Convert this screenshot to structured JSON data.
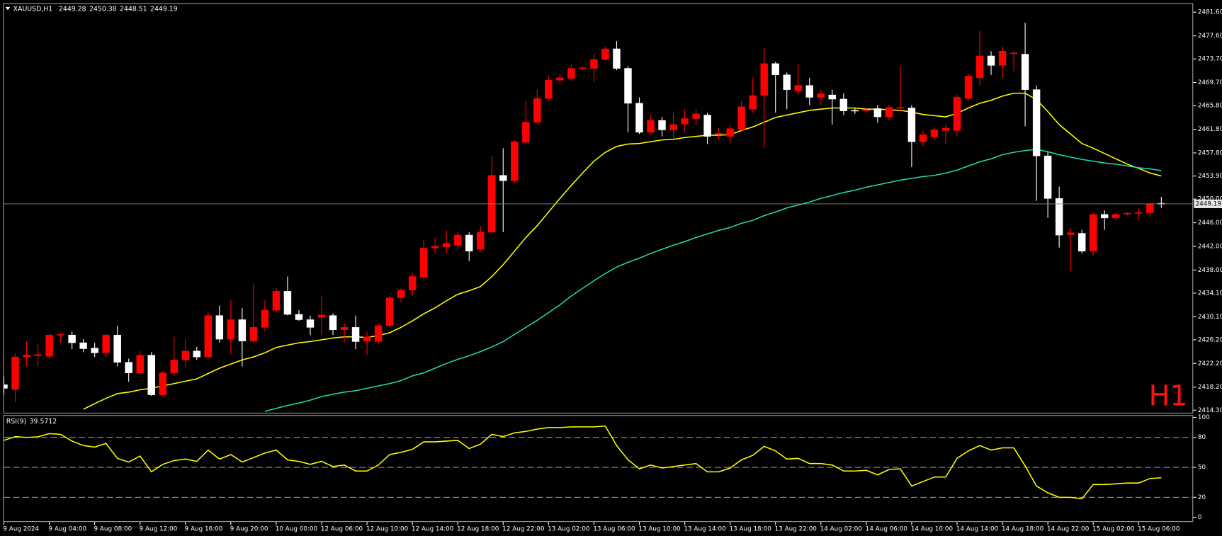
{
  "chart_data": {
    "type": "candlestick",
    "title": "XAUUSD,H1",
    "watermark": "H1",
    "watermark_color": "#ff1010",
    "up_color": "#ff0000",
    "down_color": "#ffffff",
    "categories": [
      "9 Aug 2024",
      null,
      null,
      null,
      "9 Aug 04:00",
      null,
      null,
      null,
      "9 Aug 08:00",
      null,
      null,
      null,
      "9 Aug 12:00",
      null,
      null,
      null,
      "9 Aug 16:00",
      null,
      null,
      null,
      "9 Aug 20:00",
      null,
      null,
      null,
      "10 Aug 00:00",
      null,
      null,
      null,
      "12 Aug 06:00",
      null,
      null,
      null,
      "12 Aug 10:00",
      null,
      null,
      null,
      "12 Aug 14:00",
      null,
      null,
      null,
      "12 Aug 18:00",
      null,
      null,
      null,
      "12 Aug 22:00",
      null,
      null,
      null,
      "13 Aug 02:00",
      null,
      null,
      null,
      "13 Aug 06:00",
      null,
      null,
      null,
      "13 Aug 10:00",
      null,
      null,
      null,
      "13 Aug 14:00",
      null,
      null,
      null,
      "13 Aug 18:00",
      null,
      null,
      null,
      "13 Aug 22:00",
      null,
      null,
      null,
      "14 Aug 02:00",
      null,
      null,
      null,
      "14 Aug 06:00",
      null,
      null,
      null,
      "14 Aug 10:00",
      null,
      null,
      null,
      "14 Aug 14:00",
      null,
      null,
      null,
      "14 Aug 18:00",
      null,
      null,
      null,
      "14 Aug 22:00",
      null,
      null,
      null,
      "15 Aug 02:00",
      null,
      null,
      null,
      "15 Aug 06:00",
      null,
      null
    ],
    "open": [
      2418.6,
      2417.8,
      2423.3,
      2423.5,
      2423.4,
      2427.0,
      2427.0,
      2425.7,
      2424.8,
      2424.0,
      2427.0,
      2422.4,
      2420.6,
      2423.6,
      2416.9,
      2420.6,
      2422.8,
      2424.3,
      2423.3,
      2430.3,
      2426.3,
      2429.6,
      2426.0,
      2428.3,
      2431.2,
      2434.4,
      2430.5,
      2429.6,
      2430.0,
      2430.3,
      2427.9,
      2428.3,
      2426.0,
      2425.9,
      2428.6,
      2433.3,
      2434.6,
      2436.8,
      2441.7,
      2441.9,
      2442.2,
      2443.9,
      2441.5,
      2444.4,
      2454.0,
      2453.1,
      2459.6,
      2463.0,
      2467.0,
      2470.1,
      2470.4,
      2472.1,
      2472.1,
      2473.6,
      2475.4,
      2472.1,
      2466.2,
      2461.3,
      2463.3,
      2461.7,
      2462.7,
      2463.6,
      2464.2,
      2461.0,
      2460.6,
      2461.7,
      2465.2,
      2467.5,
      2472.9,
      2471.0,
      2468.3,
      2469.2,
      2467.2,
      2467.6,
      2466.9,
      2465.0,
      2464.9,
      2465.3,
      2463.9,
      2465.4,
      2465.4,
      2459.7,
      2460.5,
      2461.6,
      2461.6,
      2467.0,
      2470.5,
      2474.2,
      2472.6,
      2474.6,
      2474.5,
      2468.5,
      2457.3,
      2450.1,
      2444.0,
      2444.2,
      2441.2,
      2447.4,
      2446.8,
      2447.5,
      2447.6,
      2447.7,
      2449.28
    ],
    "high": [
      2420.0,
      2423.8,
      2426.0,
      2425.5,
      2427.3,
      2427.4,
      2427.6,
      2426.3,
      2425.7,
      2427.3,
      2428.6,
      2423.0,
      2424.3,
      2424.1,
      2420.9,
      2426.7,
      2426.3,
      2425.0,
      2430.9,
      2432.0,
      2432.9,
      2431.6,
      2435.6,
      2432.9,
      2434.9,
      2436.9,
      2431.2,
      2430.3,
      2433.6,
      2430.7,
      2429.0,
      2430.3,
      2427.6,
      2429.0,
      2433.6,
      2434.9,
      2437.5,
      2443.1,
      2443.5,
      2444.7,
      2444.4,
      2444.4,
      2445.4,
      2457.3,
      2458.6,
      2460.0,
      2466.6,
      2468.5,
      2470.8,
      2471.2,
      2472.8,
      2472.4,
      2474.5,
      2475.8,
      2476.7,
      2472.5,
      2467.2,
      2464.2,
      2463.9,
      2464.6,
      2465.2,
      2465.2,
      2464.6,
      2462.0,
      2462.6,
      2466.6,
      2470.5,
      2475.5,
      2473.2,
      2471.4,
      2472.9,
      2470.5,
      2468.5,
      2468.5,
      2467.9,
      2465.4,
      2465.4,
      2465.9,
      2465.9,
      2472.5,
      2465.9,
      2461.6,
      2462.2,
      2462.6,
      2467.6,
      2471.2,
      2478.4,
      2475.0,
      2475.8,
      2475.0,
      2479.8,
      2469.2,
      2458.0,
      2452.1,
      2445.1,
      2444.8,
      2447.8,
      2448.1,
      2447.8,
      2447.8,
      2448.4,
      2449.4,
      2450.38
    ],
    "low": [
      2417.0,
      2415.7,
      2421.7,
      2421.7,
      2423.0,
      2425.7,
      2424.6,
      2424.1,
      2423.3,
      2423.3,
      2421.7,
      2419.1,
      2420.4,
      2416.7,
      2416.7,
      2420.1,
      2421.7,
      2422.8,
      2423.0,
      2425.7,
      2423.7,
      2421.7,
      2425.7,
      2427.6,
      2430.9,
      2430.3,
      2429.4,
      2427.0,
      2427.0,
      2427.0,
      2425.7,
      2424.6,
      2423.7,
      2425.4,
      2428.3,
      2432.5,
      2433.6,
      2436.4,
      2440.8,
      2440.8,
      2441.5,
      2439.5,
      2441.2,
      2444.1,
      2444.4,
      2452.7,
      2459.3,
      2462.6,
      2466.6,
      2469.5,
      2470.0,
      2471.8,
      2469.8,
      2473.4,
      2471.8,
      2461.3,
      2461.0,
      2461.0,
      2460.6,
      2460.2,
      2461.3,
      2462.6,
      2459.3,
      2460.0,
      2459.3,
      2461.3,
      2464.6,
      2458.6,
      2464.6,
      2465.2,
      2467.6,
      2465.9,
      2465.9,
      2462.6,
      2464.2,
      2464.4,
      2464.5,
      2462.9,
      2463.3,
      2464.6,
      2455.4,
      2458.9,
      2460.0,
      2459.3,
      2460.6,
      2466.6,
      2469.2,
      2471.0,
      2470.5,
      2471.6,
      2462.3,
      2449.7,
      2446.8,
      2441.8,
      2437.8,
      2440.8,
      2440.4,
      2444.8,
      2446.4,
      2447.2,
      2446.6,
      2447.0,
      2448.51
    ],
    "close": [
      2418.0,
      2423.3,
      2423.6,
      2423.7,
      2427.0,
      2427.1,
      2425.7,
      2424.7,
      2424.0,
      2427.0,
      2422.4,
      2420.6,
      2423.6,
      2416.9,
      2420.6,
      2422.8,
      2424.3,
      2423.3,
      2430.3,
      2426.3,
      2429.6,
      2426.0,
      2428.3,
      2431.2,
      2434.4,
      2430.5,
      2429.6,
      2428.3,
      2430.4,
      2427.9,
      2428.3,
      2425.9,
      2426.7,
      2428.6,
      2433.3,
      2434.6,
      2436.9,
      2441.7,
      2442.0,
      2442.5,
      2443.9,
      2441.2,
      2444.4,
      2454.0,
      2453.1,
      2459.7,
      2463.0,
      2467.0,
      2470.1,
      2470.5,
      2472.1,
      2472.2,
      2473.6,
      2475.4,
      2472.1,
      2466.2,
      2461.3,
      2463.3,
      2461.7,
      2462.6,
      2463.6,
      2464.4,
      2460.6,
      2461.1,
      2461.9,
      2465.6,
      2467.5,
      2472.9,
      2471.0,
      2468.5,
      2469.2,
      2467.2,
      2467.8,
      2466.9,
      2464.9,
      2464.9,
      2465.0,
      2463.9,
      2465.5,
      2465.5,
      2459.7,
      2460.9,
      2461.7,
      2462.0,
      2467.2,
      2470.8,
      2474.2,
      2472.6,
      2475.0,
      2474.7,
      2468.5,
      2457.3,
      2450.1,
      2443.9,
      2444.3,
      2441.2,
      2447.4,
      2446.8,
      2447.4,
      2447.6,
      2447.7,
      2449.2,
      2449.19
    ],
    "moving_averages": [
      {
        "color": "#ffff00",
        "values": [
          null,
          null,
          null,
          null,
          null,
          null,
          null,
          2414.45,
          2415.4,
          2416.3,
          2417.1,
          2417.35,
          2417.75,
          2418.0,
          2418.4,
          2418.8,
          2419.2,
          2419.6,
          2420.5,
          2421.4,
          2422.1,
          2422.8,
          2423.3,
          2424.0,
          2424.9,
          2425.3,
          2425.7,
          2425.9,
          2426.2,
          2426.5,
          2426.7,
          2426.7,
          2426.6,
          2426.9,
          2427.4,
          2428.3,
          2429.4,
          2430.6,
          2431.6,
          2432.8,
          2433.9,
          2434.5,
          2435.2,
          2436.9,
          2438.9,
          2441.2,
          2443.5,
          2445.5,
          2447.8,
          2450.1,
          2452.3,
          2454.4,
          2456.4,
          2457.9,
          2458.9,
          2459.3,
          2459.4,
          2459.7,
          2460.0,
          2460.1,
          2460.4,
          2460.6,
          2460.8,
          2460.8,
          2460.9,
          2461.6,
          2462.2,
          2463.0,
          2463.8,
          2464.2,
          2464.6,
          2465.0,
          2465.2,
          2465.4,
          2465.4,
          2465.4,
          2465.2,
          2465.2,
          2465.1,
          2465.0,
          2464.7,
          2464.3,
          2464.1,
          2463.9,
          2464.5,
          2465.4,
          2466.2,
          2466.7,
          2467.4,
          2467.9,
          2467.9,
          2466.8,
          2464.8,
          2462.6,
          2461.0,
          2459.4,
          2458.6,
          2457.7,
          2456.8,
          2455.9,
          2455.2,
          2454.4,
          2453.9
        ]
      },
      {
        "color": "#22d8b4",
        "values": [
          null,
          null,
          null,
          null,
          null,
          null,
          null,
          null,
          null,
          null,
          null,
          null,
          null,
          null,
          null,
          null,
          null,
          null,
          null,
          null,
          null,
          null,
          null,
          2414.1,
          2414.6,
          2415.1,
          2415.5,
          2416.0,
          2416.6,
          2417.0,
          2417.35,
          2417.6,
          2418.0,
          2418.4,
          2418.8,
          2419.3,
          2420.1,
          2420.6,
          2421.4,
          2422.2,
          2422.9,
          2423.5,
          2424.2,
          2425.0,
          2425.9,
          2427.1,
          2428.3,
          2429.5,
          2430.8,
          2432.1,
          2433.6,
          2434.9,
          2436.2,
          2437.4,
          2438.5,
          2439.3,
          2440.0,
          2440.8,
          2441.5,
          2442.2,
          2442.8,
          2443.5,
          2444.1,
          2444.7,
          2445.2,
          2445.9,
          2446.4,
          2447.2,
          2447.8,
          2448.5,
          2449.0,
          2449.5,
          2450.1,
          2450.6,
          2451.1,
          2451.5,
          2452.0,
          2452.4,
          2452.8,
          2453.2,
          2453.5,
          2453.8,
          2454.0,
          2454.4,
          2454.9,
          2455.6,
          2456.3,
          2456.8,
          2457.5,
          2457.9,
          2458.2,
          2458.4,
          2458.0,
          2457.5,
          2457.1,
          2456.7,
          2456.4,
          2456.1,
          2455.9,
          2455.6,
          2455.3,
          2455.1,
          2454.8
        ]
      }
    ],
    "ylim": [
      2414.0,
      2483.0
    ],
    "yticks": [
      {
        "value": 2414.3,
        "label": "2414.30"
      },
      {
        "value": 2418.2,
        "label": "2418.20"
      },
      {
        "value": 2422.2,
        "label": "2422.20"
      },
      {
        "value": 2426.2,
        "label": "2426.20"
      },
      {
        "value": 2430.1,
        "label": "2430.10"
      },
      {
        "value": 2434.1,
        "label": "2434.10"
      },
      {
        "value": 2438,
        "label": "2438.00"
      },
      {
        "value": 2442,
        "label": "2442.00"
      },
      {
        "value": 2446,
        "label": "2446.00"
      },
      {
        "value": 2450,
        "label": "2450.00"
      },
      {
        "value": 2453.9,
        "label": "2453.90"
      },
      {
        "value": 2457.8,
        "label": "2457.80"
      },
      {
        "value": 2461.8,
        "label": "2461.80"
      },
      {
        "value": 2465.8,
        "label": "2465.80"
      },
      {
        "value": 2469.7,
        "label": "2469.70"
      },
      {
        "value": 2473.7,
        "label": "2473.70"
      },
      {
        "value": 2477.6,
        "label": "2477.60"
      },
      {
        "value": 2481.6,
        "label": "2481.60"
      }
    ],
    "rsi": {
      "title": "RSI(9)",
      "color": "#ffff00",
      "ylim": [
        0,
        100
      ],
      "yticks": [
        0,
        20,
        50,
        80,
        100
      ],
      "levels": [
        20,
        50,
        80
      ],
      "values": [
        77.0,
        80.8,
        80.0,
        80.5,
        83.8,
        83.0,
        76.3,
        71.8,
        70.3,
        74.0,
        59.0,
        55.3,
        61.3,
        45.5,
        53.0,
        56.8,
        58.3,
        56.0,
        67.3,
        58.3,
        62.8,
        55.3,
        59.8,
        64.3,
        67.3,
        57.5,
        56.0,
        53.0,
        56.0,
        50.8,
        52.3,
        46.3,
        46.3,
        52.3,
        62.8,
        65.0,
        68.0,
        75.5,
        75.5,
        76.3,
        77.0,
        68.8,
        73.3,
        83.0,
        80.8,
        84.5,
        86.0,
        88.3,
        89.8,
        89.8,
        90.5,
        90.5,
        90.5,
        91.3,
        71.8,
        57.5,
        48.5,
        52.3,
        49.3,
        50.8,
        52.3,
        53.8,
        45.5,
        45.5,
        49.3,
        57.5,
        62.0,
        71.0,
        66.5,
        58.3,
        59.0,
        53.8,
        53.8,
        52.3,
        46.3,
        46.3,
        47.0,
        42.5,
        47.8,
        48.5,
        31.3,
        35.8,
        40.3,
        40.3,
        59.0,
        66.5,
        71.8,
        67.3,
        69.5,
        69.5,
        51.5,
        31.3,
        24.5,
        20.0,
        20.0,
        18.5,
        32.8,
        32.8,
        33.5,
        34.3,
        34.3,
        38.8,
        39.5712
      ]
    }
  }
}
